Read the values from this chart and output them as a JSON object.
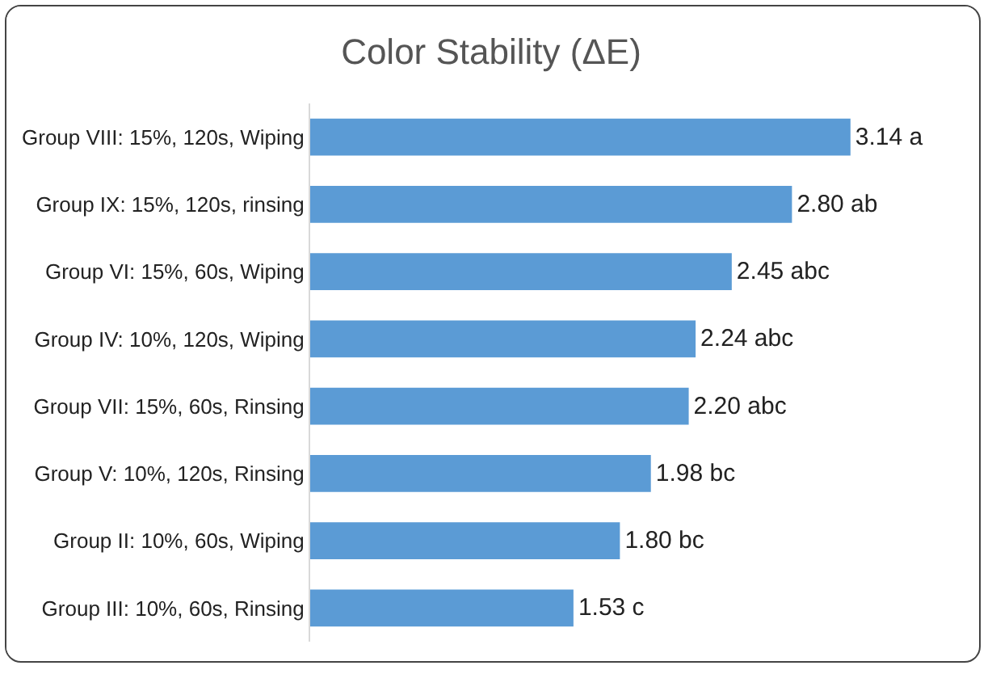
{
  "chart_data": {
    "type": "bar",
    "orientation": "horizontal",
    "title": "Color Stability (ΔE)",
    "categories": [
      "Group VIII: 15%, 120s, Wiping",
      "Group IX: 15%, 120s, rinsing",
      "Group VI: 15%, 60s, Wiping",
      "Group IV: 10%, 120s, Wiping",
      "Group VII: 15%, 60s, Rinsing",
      "Group V: 10%, 120s, Rinsing",
      "Group II: 10%, 60s, Wiping",
      "Group III: 10%, 60s, Rinsing"
    ],
    "values": [
      3.14,
      2.8,
      2.45,
      2.24,
      2.2,
      1.98,
      1.8,
      1.53
    ],
    "value_labels": [
      "3.14 a",
      "2.80 ab",
      "2.45 abc",
      "2.24 abc",
      "2.20 abc",
      "1.98 bc",
      "1.80 bc",
      "1.53 c"
    ],
    "color": "#5b9bd5"
  }
}
